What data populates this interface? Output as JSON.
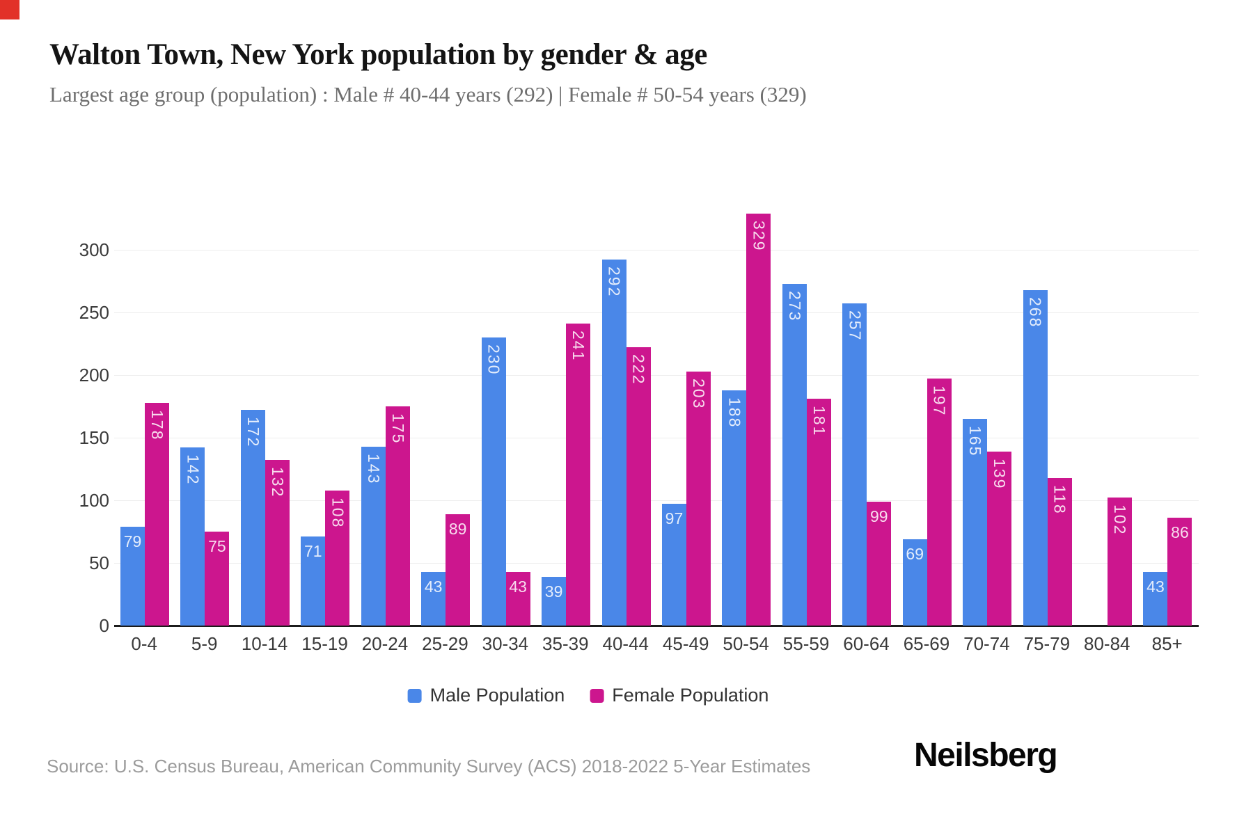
{
  "header": {
    "title": "Walton Town, New York population by gender & age",
    "subtitle": "Largest age group (population) : Male # 40-44 years (292) | Female # 50-54 years (329)"
  },
  "footer": {
    "source": "Source: U.S. Census Bureau, American Community Survey (ACS) 2018-2022 5-Year Estimates",
    "brand": "Neilsberg"
  },
  "colors": {
    "male": "#4a87e8",
    "female": "#cc168e",
    "bar_label": "rgba(255,255,255,0.85)",
    "axis_line": "#1c1c1c",
    "gridline": "#ededed",
    "corner_marker": "#e23128"
  },
  "chart_data": {
    "type": "bar",
    "title": "Walton Town, New York population by gender & age",
    "subtitle": "Largest age group (population) : Male # 40-44 years (292) | Female # 50-54 years (329)",
    "categories": [
      "0-4",
      "5-9",
      "10-14",
      "15-19",
      "20-24",
      "25-29",
      "30-34",
      "35-39",
      "40-44",
      "45-49",
      "50-54",
      "55-59",
      "60-64",
      "65-69",
      "70-74",
      "75-79",
      "80-84",
      "85+"
    ],
    "series": [
      {
        "name": "Male Population",
        "color": "#4a87e8",
        "values": [
          79,
          142,
          172,
          71,
          143,
          43,
          230,
          39,
          292,
          97,
          188,
          273,
          257,
          69,
          165,
          268,
          null,
          43
        ]
      },
      {
        "name": "Female Population",
        "color": "#cc168e",
        "values": [
          178,
          75,
          132,
          108,
          175,
          89,
          43,
          241,
          222,
          203,
          329,
          181,
          99,
          197,
          139,
          118,
          102,
          86
        ]
      }
    ],
    "xlabel": "",
    "ylabel": "",
    "ylim": [
      0,
      340
    ],
    "y_ticks": [
      0,
      50,
      100,
      150,
      200,
      250,
      300
    ],
    "grid": true,
    "legend_position": "bottom"
  }
}
